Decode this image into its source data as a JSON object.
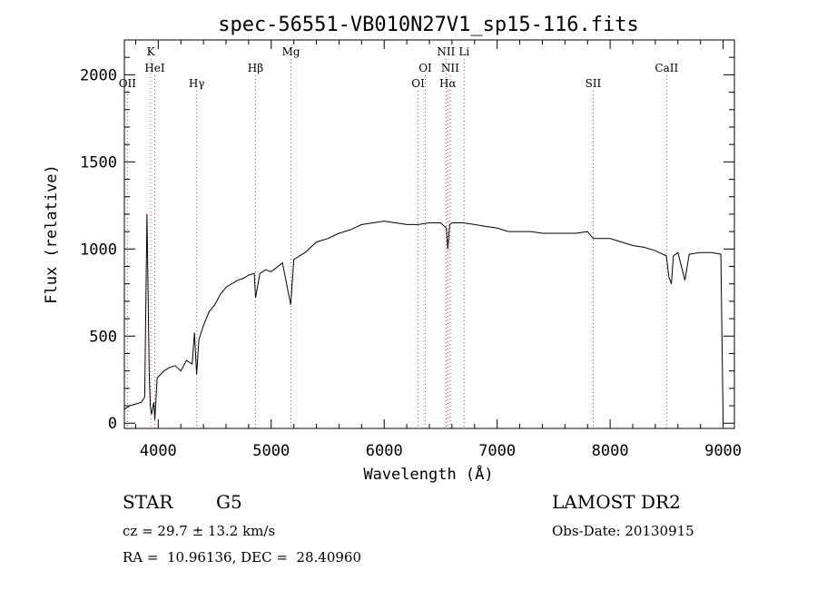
{
  "chart_data": {
    "type": "line",
    "title": "spec-56551-VB010N27V1_sp15-116.fits",
    "xlabel": "Wavelength (Å)",
    "ylabel": "Flux (relative)",
    "xlim": [
      3700,
      9100
    ],
    "ylim": [
      -30,
      2200
    ],
    "x_ticks": [
      4000,
      5000,
      6000,
      7000,
      8000,
      9000
    ],
    "y_ticks": [
      0,
      500,
      1000,
      1500,
      2000
    ],
    "x_tick_labels": [
      "4000",
      "5000",
      "6000",
      "7000",
      "8000",
      "9000"
    ],
    "y_tick_labels": [
      "0",
      "500",
      "1000",
      "1500",
      "2000"
    ],
    "grid": false,
    "series": [
      {
        "color": "#000000",
        "x": [
          3700,
          3750,
          3800,
          3850,
          3880,
          3900,
          3920,
          3930,
          3940,
          3960,
          3970,
          3990,
          4050,
          4100,
          4150,
          4200,
          4250,
          4300,
          4320,
          4340,
          4360,
          4400,
          4450,
          4500,
          4550,
          4600,
          4650,
          4700,
          4750,
          4800,
          4850,
          4861,
          4900,
          4950,
          5000,
          5100,
          5172,
          5200,
          5300,
          5400,
          5500,
          5600,
          5700,
          5800,
          5900,
          6000,
          6100,
          6200,
          6300,
          6400,
          6500,
          6550,
          6563,
          6580,
          6600,
          6700,
          6800,
          6900,
          7000,
          7100,
          7200,
          7300,
          7400,
          7500,
          7600,
          7700,
          7800,
          7850,
          7900,
          8000,
          8100,
          8200,
          8300,
          8400,
          8498,
          8520,
          8542,
          8560,
          8600,
          8662,
          8700,
          8800,
          8900,
          8980,
          8990,
          9000
        ],
        "values": [
          80,
          100,
          110,
          120,
          150,
          1200,
          280,
          100,
          50,
          120,
          20,
          260,
          300,
          320,
          330,
          300,
          360,
          340,
          520,
          280,
          480,
          560,
          640,
          680,
          740,
          780,
          800,
          820,
          830,
          850,
          860,
          720,
          860,
          880,
          870,
          920,
          680,
          940,
          980,
          1040,
          1060,
          1090,
          1110,
          1140,
          1150,
          1160,
          1150,
          1140,
          1140,
          1150,
          1150,
          1120,
          1000,
          1140,
          1150,
          1150,
          1140,
          1130,
          1120,
          1100,
          1100,
          1100,
          1090,
          1090,
          1090,
          1090,
          1100,
          1060,
          1060,
          1060,
          1040,
          1020,
          1010,
          990,
          960,
          840,
          800,
          960,
          980,
          820,
          970,
          980,
          980,
          970,
          500,
          10
        ]
      }
    ],
    "annotations": [
      {
        "x": 3727,
        "label": "OII",
        "row": 2
      },
      {
        "x": 3934,
        "label": "K",
        "row": 0
      },
      {
        "x": 3969,
        "label": "HeI",
        "row": 1
      },
      {
        "x": 4340,
        "label": "Hγ",
        "row": 2
      },
      {
        "x": 4861,
        "label": "Hβ",
        "row": 1
      },
      {
        "x": 5175,
        "label": "Mg",
        "row": 0
      },
      {
        "x": 6300,
        "label": "OI",
        "row": 2
      },
      {
        "x": 6364,
        "label": "OI",
        "row": 1
      },
      {
        "x": 6548,
        "label": "NII",
        "row": 0
      },
      {
        "x": 6563,
        "label": "Hα",
        "row": 2
      },
      {
        "x": 6584,
        "label": "NII",
        "row": 1
      },
      {
        "x": 6708,
        "label": "Li",
        "row": 0
      },
      {
        "x": 7850,
        "label": "SII",
        "row": 2
      },
      {
        "x": 8500,
        "label": "CaII",
        "row": 1
      }
    ],
    "annotation_line_color": "#e04040"
  },
  "footer": {
    "object_class": "STAR",
    "subclass": "G5",
    "survey": "LAMOST DR2",
    "cz": "cz = 29.7 ± 13.2 km/s",
    "obs_date": "Obs-Date: 20130915",
    "coords": "RA =  10.96136, DEC =  28.40960"
  }
}
